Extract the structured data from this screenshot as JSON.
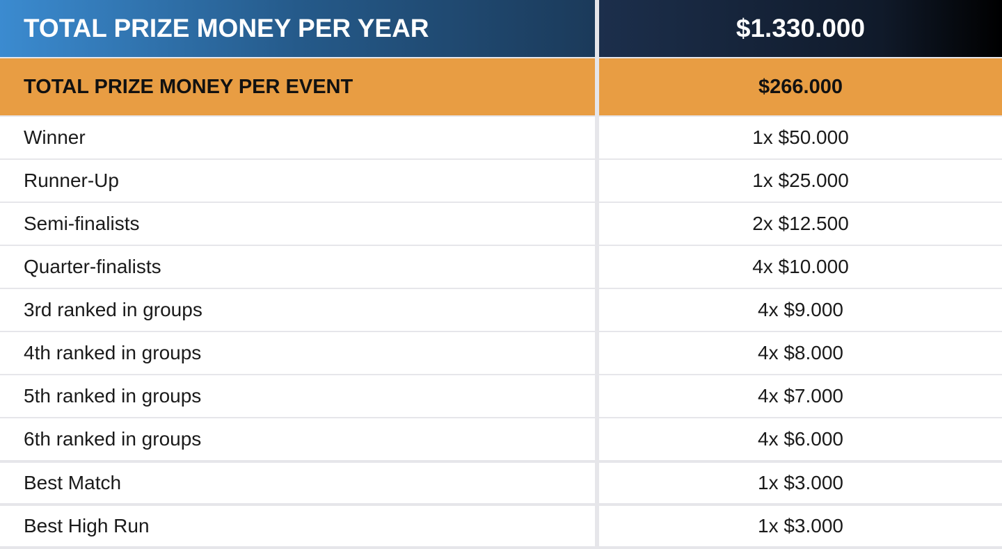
{
  "header": {
    "title": "TOTAL PRIZE MONEY PER YEAR",
    "value": "$1.330.000"
  },
  "subheader": {
    "title": "TOTAL PRIZE MONEY PER EVENT",
    "value": "$266.000"
  },
  "table": {
    "rows": [
      [
        "Winner",
        "1x $50.000"
      ],
      [
        "Runner-Up",
        "1x $25.000"
      ],
      [
        "Semi-finalists",
        "2x $12.500"
      ],
      [
        "Quarter-finalists",
        "4x $10.000"
      ],
      [
        "3rd ranked in groups",
        "4x $9.000"
      ],
      [
        "4th ranked in groups",
        "4x $8.000"
      ],
      [
        "5th ranked in groups",
        "4x $7.000"
      ],
      [
        "6th ranked in groups",
        "4x $6.000"
      ],
      [
        "Best Match",
        "1x $3.000"
      ],
      [
        "Best High Run",
        "1x $3.000"
      ]
    ]
  }
}
